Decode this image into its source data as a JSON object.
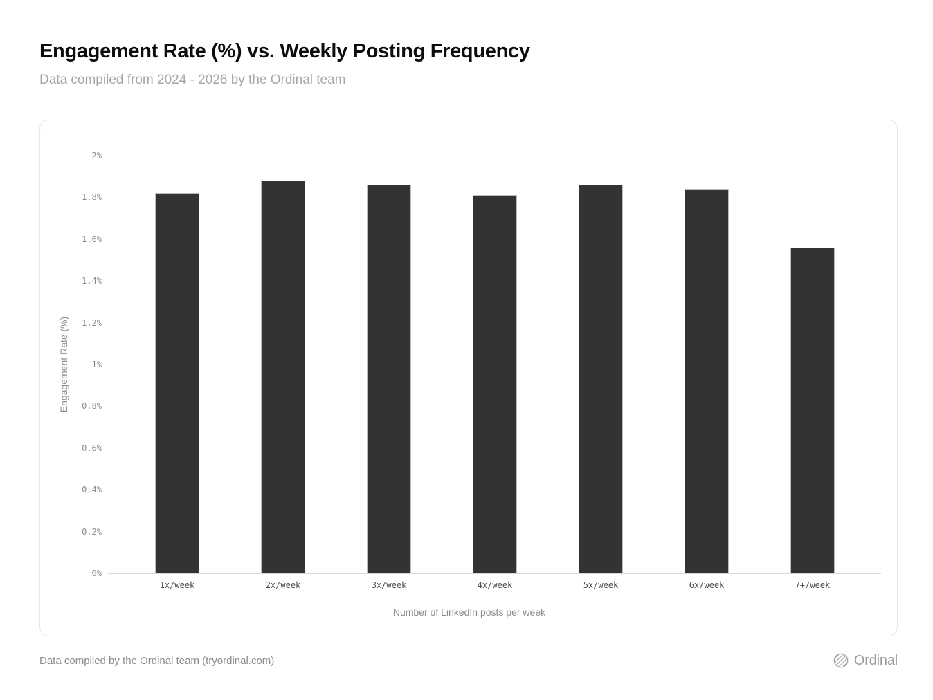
{
  "page": {
    "title": "Engagement Rate (%) vs. Weekly Posting Frequency",
    "subtitle": "Data compiled from 2024 - 2026 by the Ordinal team"
  },
  "chart_data": {
    "type": "bar",
    "categories": [
      "1x/week",
      "2x/week",
      "3x/week",
      "4x/week",
      "5x/week",
      "6x/week",
      "7+/week"
    ],
    "values": [
      1.82,
      1.88,
      1.86,
      1.81,
      1.86,
      1.84,
      1.56
    ],
    "title": "Engagement Rate (%) vs. Weekly Posting Frequency",
    "xlabel": "Number of LinkedIn posts per week",
    "ylabel": "Engagement Rate (%)",
    "ylim": [
      0,
      2
    ],
    "ytick_step": 0.2,
    "ytick_labels": [
      "0%",
      "0.2%",
      "0.4%",
      "0.6%",
      "0.8%",
      "1%",
      "1.2%",
      "1.4%",
      "1.6%",
      "1.8%",
      "2%"
    ],
    "grid": false,
    "legend": "none",
    "bar_color": "#333333",
    "bar_stroke": "#bdbdbd",
    "axis_line_color": "#d9d9d9"
  },
  "footer": {
    "note": "Data compiled by the Ordinal team (tryordinal.com)",
    "brand": "Ordinal",
    "brand_icon": "hatched-sphere-icon"
  },
  "colors": {
    "title_text": "#0c0c0c",
    "subtitle_text": "#a6a6a6",
    "y_tick_text": "#8c8c8c",
    "x_tick_text": "#4d4d4d",
    "axis_title_text": "#8c8c8c",
    "footer_text": "#8a8a8a",
    "brand_text": "#9a9a9a",
    "card_border": "#e7e7e7",
    "background": "#ffffff"
  }
}
